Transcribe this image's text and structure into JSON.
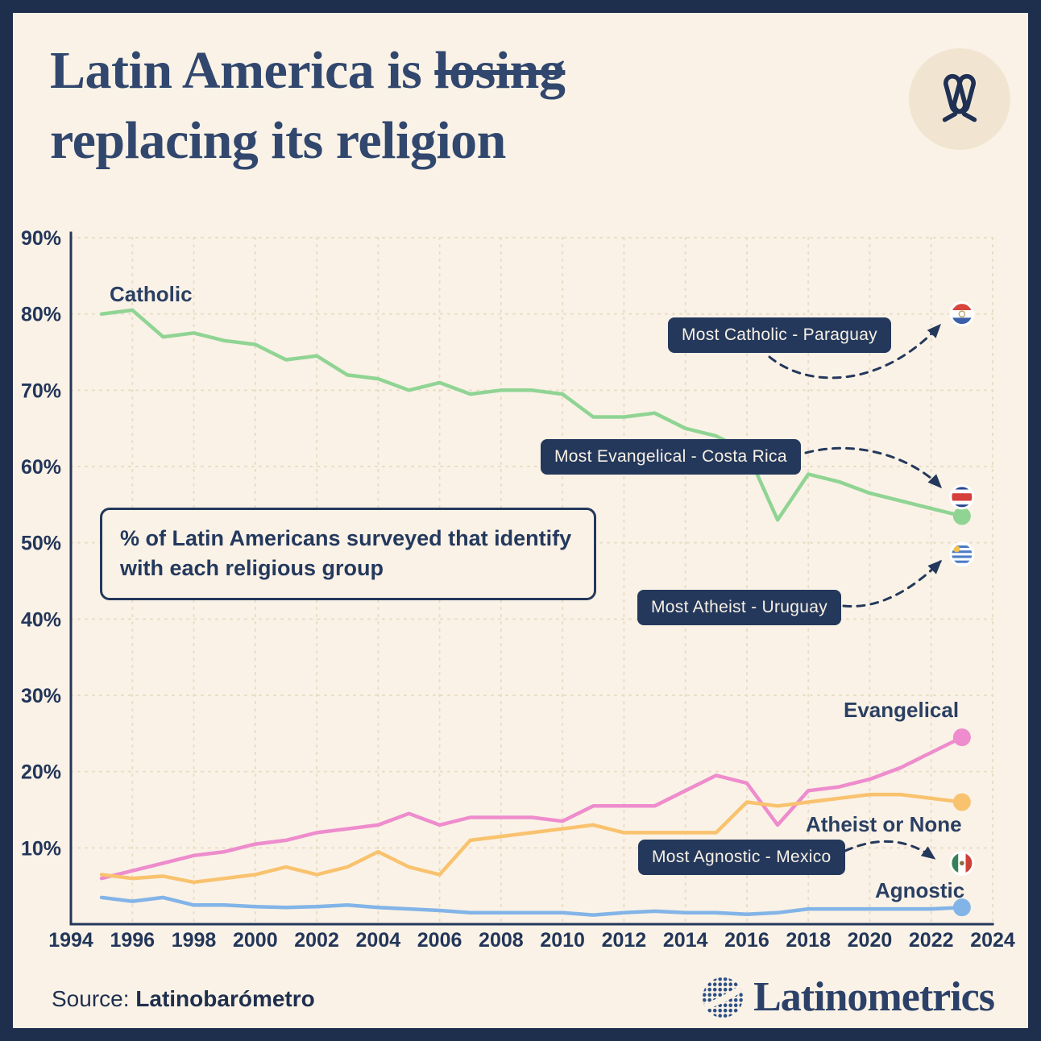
{
  "page": {
    "background": "#faf2e6",
    "frame_color": "#1e2e4d",
    "accent_navy": "#24385c"
  },
  "header": {
    "title_prefix": "Latin America is ",
    "title_strike": "losing",
    "title_line2": "replacing its religion",
    "icon": "praying-hands-icon"
  },
  "annotation_box": {
    "text": "% of Latin Americans surveyed  that identify with each religious group"
  },
  "callouts": [
    {
      "id": "paraguay",
      "label": "Most Catholic - Paraguay",
      "flag": "paraguay-flag",
      "value_pct": 80
    },
    {
      "id": "costa-rica",
      "label": "Most Evangelical - Costa Rica",
      "flag": "costa-rica-flag",
      "value_pct": 56
    },
    {
      "id": "uruguay",
      "label": "Most Atheist - Uruguay",
      "flag": "uruguay-flag",
      "value_pct": 48.5
    },
    {
      "id": "mexico",
      "label": "Most Agnostic - Mexico",
      "flag": "mexico-flag",
      "value_pct": 8
    }
  ],
  "chart_data": {
    "type": "line",
    "title": "% of Latin Americans surveyed that identify with each religious group",
    "x": [
      1995,
      1996,
      1997,
      1998,
      1999,
      2000,
      2001,
      2002,
      2003,
      2004,
      2005,
      2006,
      2007,
      2008,
      2009,
      2010,
      2011,
      2012,
      2013,
      2014,
      2015,
      2016,
      2017,
      2018,
      2019,
      2020,
      2021,
      2022,
      2023
    ],
    "xlim": [
      1994,
      2024
    ],
    "ylim": [
      0,
      90
    ],
    "x_ticks": [
      1994,
      1996,
      1998,
      2000,
      2002,
      2004,
      2006,
      2008,
      2010,
      2012,
      2014,
      2016,
      2018,
      2020,
      2022,
      2024
    ],
    "y_ticks": [
      10,
      20,
      30,
      40,
      50,
      60,
      70,
      80,
      90
    ],
    "y_tick_suffix": "%",
    "grid": true,
    "legend_position": "inline-labels",
    "series": [
      {
        "id": "catholic",
        "name": "Catholic",
        "color": "#90d494",
        "values": [
          80,
          80.5,
          77,
          77.5,
          76.5,
          76,
          74,
          74.5,
          72,
          71.5,
          70,
          71,
          69.5,
          70,
          70,
          69.5,
          66.5,
          66.5,
          67,
          65,
          64,
          62,
          53,
          59,
          58,
          56.5,
          55.5,
          54.5,
          53.5
        ]
      },
      {
        "id": "evangelical",
        "name": "Evangelical",
        "color": "#ee8ccd",
        "values": [
          6,
          7,
          8,
          9,
          9.5,
          10.5,
          11,
          12,
          12.5,
          13,
          14.5,
          13,
          14,
          14,
          14,
          13.5,
          15.5,
          15.5,
          15.5,
          17.5,
          19.5,
          18.5,
          13,
          17.5,
          18,
          19,
          20.5,
          22.5,
          24.5
        ]
      },
      {
        "id": "atheist",
        "name": "Atheist or None",
        "color": "#f9c26e",
        "values": [
          6.5,
          6,
          6.3,
          5.5,
          6,
          6.5,
          7.5,
          6.5,
          7.5,
          9.5,
          7.5,
          6.5,
          11,
          11.5,
          12,
          12.5,
          13,
          12,
          12,
          12,
          12,
          16,
          15.5,
          16,
          16.5,
          17,
          17,
          16.5,
          16
        ]
      },
      {
        "id": "agnostic",
        "name": "Agnostic",
        "color": "#82b4e8",
        "values": [
          3.5,
          3,
          3.5,
          2.5,
          2.5,
          2.3,
          2.2,
          2.3,
          2.5,
          2.2,
          2,
          1.8,
          1.5,
          1.5,
          1.5,
          1.5,
          1.2,
          1.5,
          1.7,
          1.5,
          1.5,
          1.3,
          1.5,
          2,
          2,
          2,
          2,
          2,
          2.2
        ]
      }
    ]
  },
  "footer": {
    "source_prefix": "Source: ",
    "source_name": "Latinobarómetro",
    "brand": "Latinometrics"
  }
}
